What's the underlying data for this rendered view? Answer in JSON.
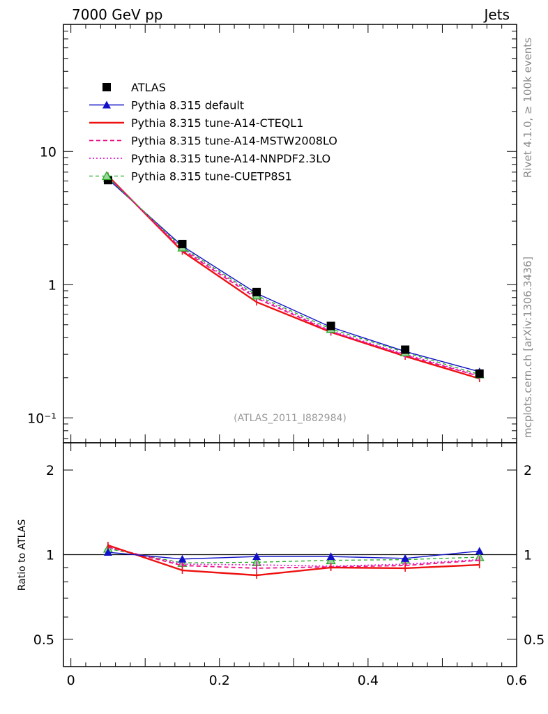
{
  "header": {
    "left_title": "7000 GeV pp",
    "right_title": "Jets"
  },
  "side_labels": {
    "rivet": "Rivet 4.1.0, ≥ 100k events",
    "mcplots": "mcplots.cern.ch [arXiv:1306.3436]"
  },
  "reference_label": "(ATLAS_2011_I882984)",
  "chart_data": [
    {
      "type": "line",
      "panel": "main",
      "yscale": "log",
      "xlim": [
        -0.01,
        0.6
      ],
      "ylim": [
        0.065,
        90
      ],
      "y_ticks": [
        {
          "value": 10,
          "label": "10"
        },
        {
          "value": 1,
          "label": "1"
        },
        {
          "value": 0.1,
          "label": "10⁻¹"
        }
      ],
      "legend_position": "top-left",
      "x": [
        0.05,
        0.15,
        0.25,
        0.35,
        0.45,
        0.55
      ],
      "series": [
        {
          "name": "ATLAS",
          "color": "#000000",
          "style": "data-squares",
          "values": [
            6.1,
            2.02,
            0.88,
            0.49,
            0.325,
            0.215
          ]
        },
        {
          "name": "Pythia 8.315 default",
          "color": "#1010c8",
          "style": "solid-triangle",
          "values": [
            6.2,
            1.95,
            0.86,
            0.48,
            0.315,
            0.222
          ]
        },
        {
          "name": "Pythia 8.315 tune-A14-CTEQL1",
          "color": "#ee1111",
          "style": "solid-thick",
          "values": [
            6.55,
            1.78,
            0.74,
            0.44,
            0.29,
            0.197
          ]
        },
        {
          "name": "Pythia 8.315 tune-A14-MSTW2008LO",
          "color": "#ee1188",
          "style": "dashed",
          "values": [
            6.45,
            1.83,
            0.79,
            0.445,
            0.295,
            0.205
          ]
        },
        {
          "name": "Pythia 8.315 tune-A14-NNPDF2.3LO",
          "color": "#dd22cc",
          "style": "dotted",
          "values": [
            6.4,
            1.86,
            0.81,
            0.45,
            0.3,
            0.207
          ]
        },
        {
          "name": "Pythia 8.315 tune-CUETP8S1",
          "color": "#22aa22",
          "style": "dashed-triangle-open",
          "values": [
            6.35,
            1.9,
            0.83,
            0.465,
            0.31,
            0.212
          ]
        }
      ]
    },
    {
      "type": "line",
      "panel": "ratio",
      "yscale": "log",
      "ylabel": "Ratio to ATLAS",
      "xlim": [
        -0.01,
        0.6
      ],
      "ylim": [
        0.4,
        2.5
      ],
      "y_ticks": [
        {
          "value": 2,
          "label": "2"
        },
        {
          "value": 1,
          "label": "1"
        },
        {
          "value": 0.5,
          "label": "0.5"
        }
      ],
      "x_ticks": [
        {
          "value": 0,
          "label": "0"
        },
        {
          "value": 0.2,
          "label": "0.2"
        },
        {
          "value": 0.4,
          "label": "0.4"
        },
        {
          "value": 0.6,
          "label": "0.6"
        }
      ],
      "x": [
        0.05,
        0.15,
        0.25,
        0.35,
        0.45,
        0.55
      ],
      "series": [
        {
          "name": "Pythia 8.315 default",
          "values": [
            1.02,
            0.965,
            0.985,
            0.985,
            0.97,
            1.03
          ]
        },
        {
          "name": "Pythia 8.315 tune-A14-CTEQL1",
          "values": [
            1.08,
            0.88,
            0.845,
            0.9,
            0.895,
            0.92
          ]
        },
        {
          "name": "Pythia 8.315 tune-A14-MSTW2008LO",
          "values": [
            1.065,
            0.915,
            0.895,
            0.905,
            0.915,
            0.955
          ]
        },
        {
          "name": "Pythia 8.315 tune-A14-NNPDF2.3LO",
          "values": [
            1.06,
            0.925,
            0.92,
            0.91,
            0.925,
            0.96
          ]
        },
        {
          "name": "Pythia 8.315 tune-CUETP8S1",
          "values": [
            1.05,
            0.935,
            0.94,
            0.955,
            0.96,
            0.98
          ]
        }
      ]
    }
  ]
}
